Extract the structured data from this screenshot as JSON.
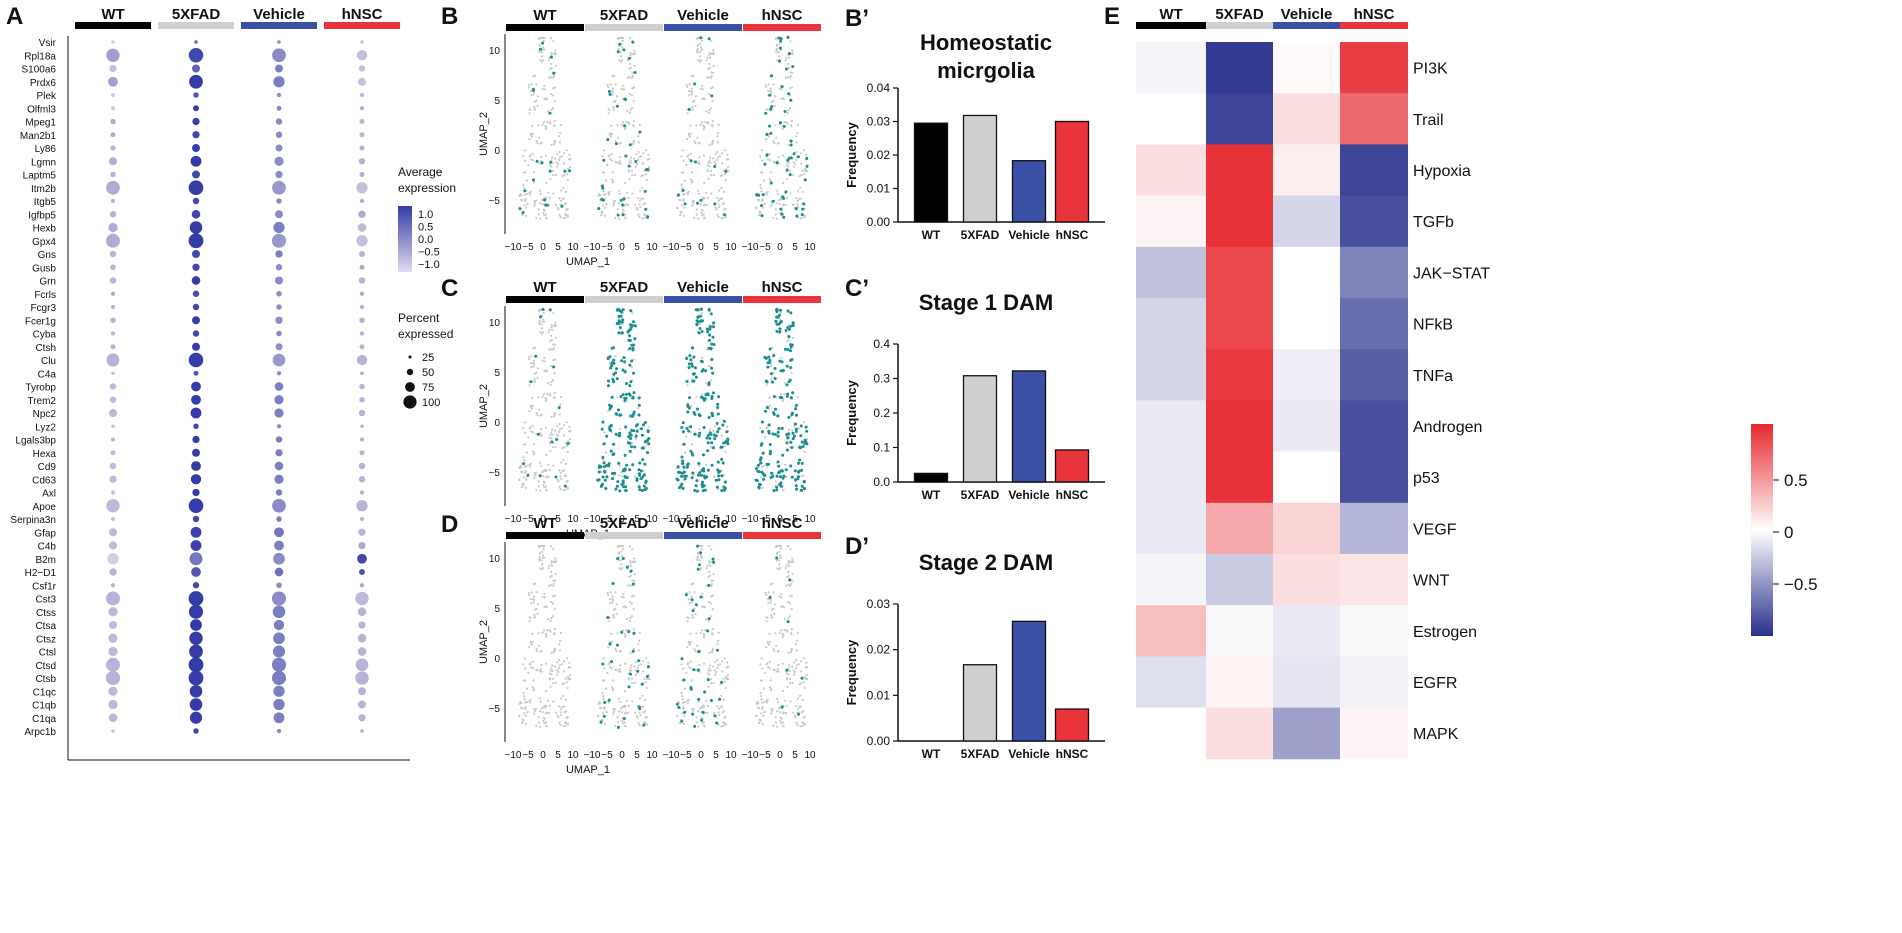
{
  "groups": [
    "WT",
    "5XFAD",
    "Vehicle",
    "hNSC"
  ],
  "group_colors": [
    "#000000",
    "#cfcfcf",
    "#3a4fa6",
    "#e8343a"
  ],
  "panel_labels": {
    "A": "A",
    "B": "B",
    "Bp": "B’",
    "C": "C",
    "Cp": "C’",
    "D": "D",
    "Dp": "D’",
    "E": "E"
  },
  "umap_axes": {
    "x_label": "UMAP_1",
    "y_label": "UMAP_2",
    "x_ticks": [
      "−10",
      "−5",
      "0",
      "5",
      "10"
    ],
    "y_ticks": [
      "10",
      "5",
      "0",
      "−5"
    ]
  },
  "umap_highlight_color": "#1a8f8f",
  "umap_panels": [
    {
      "panel": "B",
      "label": "Homeostatic microglia",
      "density": [
        0.08,
        0.14,
        0.06,
        0.22
      ]
    },
    {
      "panel": "C",
      "label": "Stage 1 DAM",
      "density": [
        0.06,
        0.8,
        0.75,
        0.72
      ]
    },
    {
      "panel": "D",
      "label": "Stage 2 DAM",
      "density": [
        0.0,
        0.12,
        0.15,
        0.03
      ]
    }
  ],
  "chart_data": [
    {
      "type": "scatter",
      "title": "Dot plot",
      "genes": [
        "Vsir",
        "Rpl18a",
        "S100a6",
        "Prdx6",
        "Plek",
        "Olfml3",
        "Mpeg1",
        "Man2b1",
        "Ly86",
        "Lgmn",
        "Laptm5",
        "Itm2b",
        "Itgb5",
        "Igfbp5",
        "Hexb",
        "Gpx4",
        "Gns",
        "Gusb",
        "Grn",
        "Fcrls",
        "Fcgr3",
        "Fcer1g",
        "Cyba",
        "Ctsh",
        "Clu",
        "C4a",
        "Tyrobp",
        "Trem2",
        "Npc2",
        "Lyz2",
        "Lgals3bp",
        "Hexa",
        "Cd9",
        "Cd63",
        "Axl",
        "Apoe",
        "Serpina3n",
        "Gfap",
        "C4b",
        "B2m",
        "H2−D1",
        "Csf1r",
        "Cst3",
        "Ctss",
        "Ctsa",
        "Ctsz",
        "Ctsl",
        "Ctsd",
        "Ctsb",
        "C1qc",
        "C1qb",
        "C1qa",
        "Arpc1b"
      ],
      "groups": [
        "WT",
        "5XFAD",
        "Vehicle",
        "hNSC"
      ],
      "percent_expressed": [
        [
          3,
          3,
          3,
          3
        ],
        [
          80,
          95,
          85,
          45
        ],
        [
          20,
          25,
          25,
          15
        ],
        [
          40,
          85,
          55,
          25
        ],
        [
          5,
          10,
          5,
          5
        ],
        [
          5,
          12,
          8,
          5
        ],
        [
          10,
          20,
          15,
          8
        ],
        [
          8,
          20,
          15,
          8
        ],
        [
          8,
          25,
          18,
          8
        ],
        [
          25,
          50,
          35,
          15
        ],
        [
          10,
          25,
          20,
          8
        ],
        [
          85,
          98,
          85,
          55
        ],
        [
          5,
          15,
          10,
          5
        ],
        [
          15,
          30,
          25,
          20
        ],
        [
          35,
          70,
          55,
          30
        ],
        [
          88,
          100,
          90,
          55
        ],
        [
          15,
          25,
          20,
          12
        ],
        [
          10,
          20,
          15,
          8
        ],
        [
          15,
          30,
          25,
          15
        ],
        [
          5,
          15,
          10,
          5
        ],
        [
          5,
          15,
          10,
          5
        ],
        [
          10,
          25,
          20,
          10
        ],
        [
          5,
          15,
          10,
          5
        ],
        [
          8,
          25,
          18,
          8
        ],
        [
          75,
          95,
          70,
          45
        ],
        [
          3,
          8,
          5,
          3
        ],
        [
          15,
          40,
          30,
          10
        ],
        [
          15,
          40,
          35,
          10
        ],
        [
          25,
          50,
          35,
          15
        ],
        [
          3,
          10,
          5,
          3
        ],
        [
          5,
          20,
          15,
          5
        ],
        [
          8,
          25,
          20,
          8
        ],
        [
          15,
          40,
          30,
          15
        ],
        [
          20,
          45,
          35,
          15
        ],
        [
          5,
          20,
          15,
          5
        ],
        [
          80,
          98,
          85,
          55
        ],
        [
          5,
          15,
          10,
          5
        ],
        [
          25,
          50,
          40,
          20
        ],
        [
          25,
          50,
          40,
          20
        ],
        [
          55,
          75,
          60,
          40
        ],
        [
          20,
          40,
          30,
          12
        ],
        [
          5,
          15,
          10,
          5
        ],
        [
          88,
          100,
          90,
          80
        ],
        [
          35,
          90,
          70,
          30
        ],
        [
          25,
          60,
          45,
          20
        ],
        [
          35,
          80,
          60,
          30
        ],
        [
          35,
          85,
          65,
          30
        ],
        [
          88,
          100,
          90,
          70
        ],
        [
          90,
          100,
          90,
          80
        ],
        [
          35,
          70,
          55,
          25
        ],
        [
          35,
          70,
          55,
          25
        ],
        [
          30,
          65,
          50,
          20
        ],
        [
          3,
          10,
          5,
          3
        ]
      ],
      "average_expression": [
        [
          -1,
          0.5,
          0,
          -0.8
        ],
        [
          -0.3,
          1,
          0,
          -0.8
        ],
        [
          -0.8,
          0.6,
          0.2,
          -0.8
        ],
        [
          -0.3,
          1.2,
          0.2,
          -0.8
        ],
        [
          -1,
          0.8,
          0,
          -0.7
        ],
        [
          -1,
          1.2,
          0,
          -0.5
        ],
        [
          -0.5,
          1.2,
          0,
          -0.6
        ],
        [
          -0.5,
          1,
          0,
          -0.6
        ],
        [
          -0.6,
          1.2,
          0,
          -0.6
        ],
        [
          -0.5,
          1.2,
          0,
          -0.6
        ],
        [
          -0.6,
          1,
          0,
          -0.5
        ],
        [
          -0.5,
          1.2,
          -0.2,
          -0.8
        ],
        [
          -0.6,
          1,
          0,
          -0.5
        ],
        [
          -0.6,
          1,
          0,
          -0.5
        ],
        [
          -0.5,
          1.2,
          0.2,
          -0.7
        ],
        [
          -0.5,
          1.2,
          -0.2,
          -0.8
        ],
        [
          -0.6,
          1,
          0.2,
          -0.6
        ],
        [
          -0.6,
          1,
          0,
          -0.5
        ],
        [
          -0.6,
          1.2,
          0,
          -0.6
        ],
        [
          -0.5,
          0.9,
          0,
          -0.4
        ],
        [
          -0.6,
          1,
          0,
          -0.6
        ],
        [
          -0.6,
          1.2,
          0,
          -0.6
        ],
        [
          -0.6,
          1,
          0,
          -0.5
        ],
        [
          -0.6,
          1.2,
          0,
          -0.6
        ],
        [
          -0.6,
          1.2,
          -0.2,
          -0.6
        ],
        [
          -0.8,
          0.8,
          0,
          -0.5
        ],
        [
          -0.7,
          1.2,
          0.2,
          -0.6
        ],
        [
          -0.7,
          1.2,
          0.2,
          -0.6
        ],
        [
          -0.7,
          1.2,
          0.2,
          -0.6
        ],
        [
          -0.8,
          1,
          0,
          -0.6
        ],
        [
          -0.7,
          1.2,
          0.2,
          -0.6
        ],
        [
          -0.7,
          1.2,
          0.2,
          -0.6
        ],
        [
          -0.7,
          1.2,
          0.2,
          -0.6
        ],
        [
          -0.7,
          1.2,
          0.2,
          -0.6
        ],
        [
          -0.8,
          1.2,
          0.2,
          -0.6
        ],
        [
          -0.7,
          1.2,
          0,
          -0.6
        ],
        [
          -0.8,
          1,
          0.2,
          -0.6
        ],
        [
          -0.7,
          1.1,
          0.3,
          -0.6
        ],
        [
          -0.7,
          1.1,
          0.2,
          -0.5
        ],
        [
          -1,
          0.3,
          0,
          1
        ],
        [
          -0.6,
          0.8,
          0.4,
          0.9
        ],
        [
          -0.6,
          1,
          0,
          -0.4
        ],
        [
          -0.6,
          1.2,
          0,
          -0.7
        ],
        [
          -0.7,
          1.2,
          0.2,
          -0.6
        ],
        [
          -0.7,
          1.2,
          0.2,
          -0.6
        ],
        [
          -0.7,
          1.2,
          0.2,
          -0.6
        ],
        [
          -0.7,
          1.2,
          0.2,
          -0.6
        ],
        [
          -0.6,
          1.2,
          0.2,
          -0.6
        ],
        [
          -0.6,
          1.2,
          0.2,
          -0.6
        ],
        [
          -0.7,
          1.2,
          0.2,
          -0.6
        ],
        [
          -0.7,
          1.2,
          0.2,
          -0.6
        ],
        [
          -0.7,
          1.2,
          0.2,
          -0.6
        ],
        [
          -0.8,
          1,
          0,
          -0.6
        ]
      ],
      "legend": {
        "color_title": "Average expression",
        "color_ticks": [
          "1.0",
          "0.5",
          "0.0",
          "−0.5",
          "−1.0"
        ],
        "size_title": "Percent expressed",
        "size_ticks": [
          "25",
          "50",
          "75",
          "100"
        ]
      }
    },
    {
      "type": "bar",
      "title": "Homeostatic micrgolia",
      "categories": [
        "WT",
        "5XFAD",
        "Vehicle",
        "hNSC"
      ],
      "values": [
        0.0295,
        0.0318,
        0.0183,
        0.03
      ],
      "ylabel": "Frequency",
      "ylim": [
        0,
        0.04
      ],
      "yticks": [
        "0.00",
        "0.01",
        "0.02",
        "0.03",
        "0.04"
      ]
    },
    {
      "type": "bar",
      "title": "Stage 1 DAM",
      "categories": [
        "WT",
        "5XFAD",
        "Vehicle",
        "hNSC"
      ],
      "values": [
        0.025,
        0.308,
        0.322,
        0.093
      ],
      "ylabel": "Frequency",
      "ylim": [
        0,
        0.4
      ],
      "yticks": [
        "0.0",
        "0.1",
        "0.2",
        "0.3",
        "0.4"
      ]
    },
    {
      "type": "bar",
      "title": "Stage 2 DAM",
      "categories": [
        "WT",
        "5XFAD",
        "Vehicle",
        "hNSC"
      ],
      "values": [
        0,
        0.0167,
        0.0262,
        0.007
      ],
      "ylabel": "Frequency",
      "ylim": [
        0,
        0.03
      ],
      "yticks": [
        "0.00",
        "0.01",
        "0.02",
        "0.03"
      ]
    },
    {
      "type": "heatmap",
      "columns": [
        "WT",
        "5XFAD",
        "Vehicle",
        "hNSC"
      ],
      "rows": [
        "PI3K",
        "Trail",
        "Hypoxia",
        "TGFb",
        "JAK−STAT",
        "NFkB",
        "TNFa",
        "Androgen",
        "p53",
        "VEGF",
        "WNT",
        "Estrogen",
        "EGFR",
        "MAPK"
      ],
      "values": [
        [
          -0.05,
          -0.95,
          0.02,
          0.9
        ],
        [
          0,
          -0.9,
          0.15,
          0.7
        ],
        [
          0.15,
          0.95,
          0.08,
          -0.9
        ],
        [
          0.05,
          0.95,
          -0.2,
          -0.85
        ],
        [
          -0.3,
          0.85,
          0,
          -0.6
        ],
        [
          -0.2,
          0.85,
          0,
          -0.7
        ],
        [
          -0.2,
          0.92,
          -0.08,
          -0.78
        ],
        [
          -0.1,
          0.95,
          -0.1,
          -0.85
        ],
        [
          -0.1,
          0.95,
          0,
          -0.85
        ],
        [
          -0.1,
          0.4,
          0.2,
          -0.35
        ],
        [
          -0.05,
          -0.25,
          0.15,
          0.12
        ],
        [
          0.3,
          -0.03,
          -0.1,
          -0.03
        ],
        [
          -0.15,
          0.06,
          -0.12,
          -0.06
        ],
        [
          0,
          0.15,
          -0.45,
          0.05
        ]
      ],
      "colorbar_ticks": [
        "0.5",
        "0",
        "−0.5"
      ]
    }
  ]
}
